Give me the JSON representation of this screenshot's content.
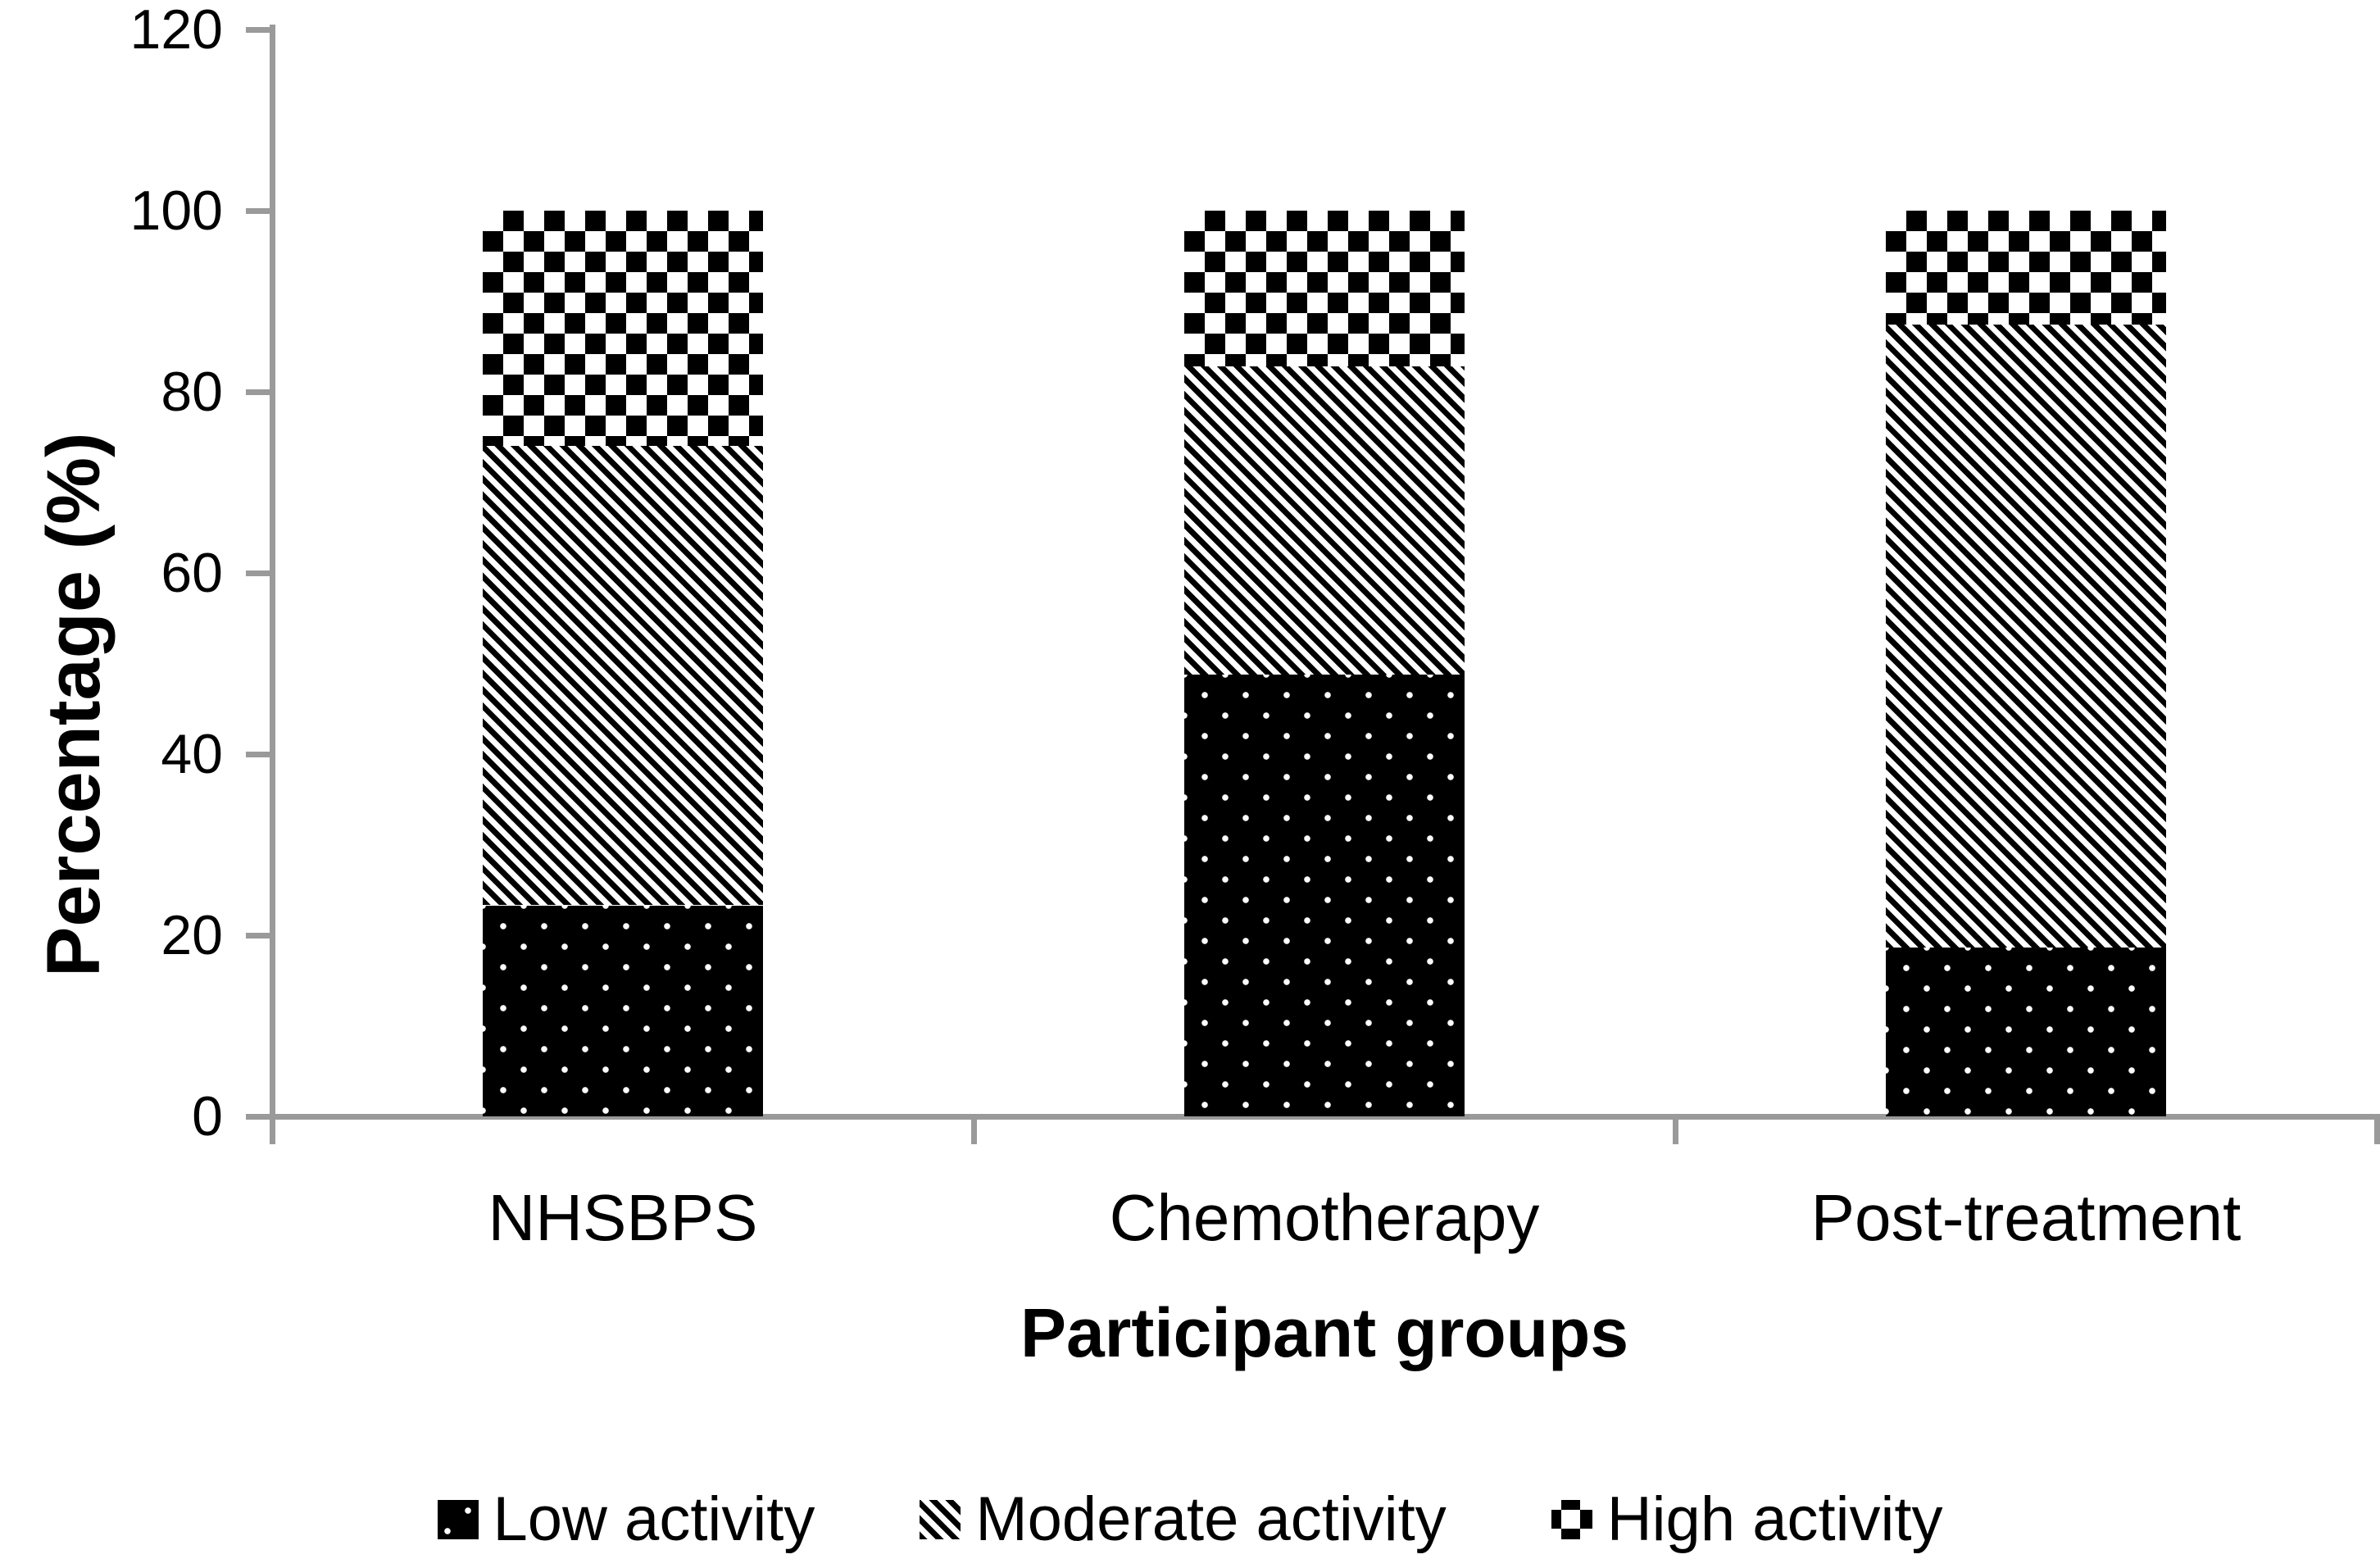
{
  "chart_data": {
    "type": "bar",
    "subtype": "stacked-percentage",
    "title": "",
    "xlabel": "Participant groups",
    "ylabel": "Percentage (%)",
    "categories": [
      "NHSBPS",
      "Chemotherapy",
      "Post-treatment"
    ],
    "series": [
      {
        "name": "Low activity",
        "pattern": "dots",
        "values": [
          23.3,
          48.8,
          18.6
        ]
      },
      {
        "name": "Moderate activity",
        "pattern": "diagonal-stripes",
        "values": [
          50.7,
          34.0,
          68.8
        ]
      },
      {
        "name": "High activity",
        "pattern": "checkerboard",
        "values": [
          26.0,
          17.2,
          12.6
        ]
      }
    ],
    "ylim": [
      0,
      120
    ],
    "yticks": [
      0,
      20,
      40,
      60,
      80,
      100,
      120
    ],
    "grid": "off",
    "legend_position": "bottom",
    "colors": {
      "pattern_foreground": "#000000",
      "pattern_background": "#ffffff",
      "axis": "#9a9a9a",
      "text": "#000000",
      "background": "#ffffff"
    }
  }
}
